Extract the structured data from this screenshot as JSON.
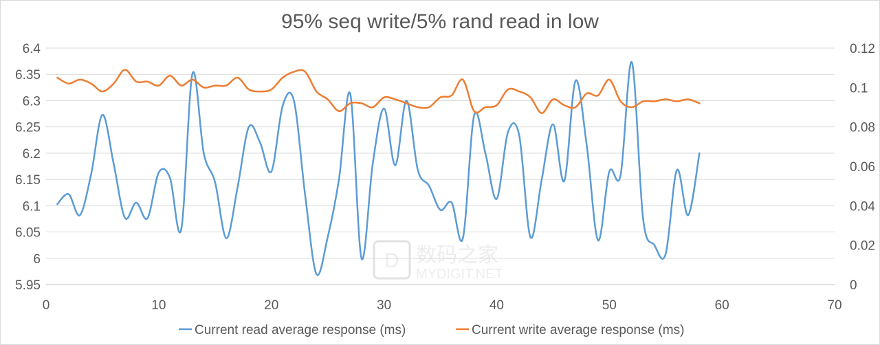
{
  "chart_data": {
    "type": "line",
    "title": "95% seq write/5% rand read in low",
    "xlabel": "",
    "ylabel": "",
    "xlim": [
      0,
      70
    ],
    "x_ticks": [
      "0",
      "10",
      "20",
      "30",
      "40",
      "50",
      "60",
      "70"
    ],
    "ylim_left": [
      5.95,
      6.4
    ],
    "y_ticks_left": [
      "5.95",
      "6",
      "6.05",
      "6.1",
      "6.15",
      "6.2",
      "6.25",
      "6.3",
      "6.35",
      "6.4"
    ],
    "ylim_right": [
      0,
      0.12
    ],
    "y_ticks_right": [
      "0",
      "0.02",
      "0.04",
      "0.06",
      "0.08",
      "0.1",
      "0.12"
    ],
    "grid": "horizontal",
    "legend_position": "bottom",
    "series": [
      {
        "name": "Current read average response (ms)",
        "axis": "left",
        "color": "#5b9bd5",
        "x": [
          1,
          2,
          3,
          4,
          5,
          6,
          7,
          8,
          9,
          10,
          11,
          12,
          13,
          14,
          15,
          16,
          17,
          18,
          19,
          20,
          21,
          22,
          23,
          24,
          25,
          26,
          27,
          28,
          29,
          30,
          31,
          32,
          33,
          34,
          35,
          36,
          37,
          38,
          39,
          40,
          41,
          42,
          43,
          44,
          45,
          46,
          47,
          48,
          49,
          50,
          51,
          52,
          53,
          54,
          55,
          56,
          57,
          58
        ],
        "values": [
          6.103,
          6.122,
          6.082,
          6.16,
          6.273,
          6.18,
          6.077,
          6.106,
          6.076,
          6.163,
          6.153,
          6.055,
          6.352,
          6.2,
          6.145,
          6.038,
          6.135,
          6.25,
          6.22,
          6.165,
          6.29,
          6.3,
          6.12,
          5.97,
          6.04,
          6.15,
          6.313,
          6.0,
          6.18,
          6.285,
          6.177,
          6.3,
          6.168,
          6.138,
          6.092,
          6.106,
          6.038,
          6.272,
          6.2,
          6.113,
          6.24,
          6.234,
          6.04,
          6.15,
          6.255,
          6.147,
          6.338,
          6.214,
          6.034,
          6.165,
          6.158,
          6.373,
          6.075,
          6.025,
          6.008,
          6.168,
          6.082,
          6.2
        ]
      },
      {
        "name": "Current write average response (ms)",
        "axis": "right",
        "color": "#ed7d31",
        "x": [
          1,
          2,
          3,
          4,
          5,
          6,
          7,
          8,
          9,
          10,
          11,
          12,
          13,
          14,
          15,
          16,
          17,
          18,
          19,
          20,
          21,
          22,
          23,
          24,
          25,
          26,
          27,
          28,
          29,
          30,
          31,
          32,
          33,
          34,
          35,
          36,
          37,
          38,
          39,
          40,
          41,
          42,
          43,
          44,
          45,
          46,
          47,
          48,
          49,
          50,
          51,
          52,
          53,
          54,
          55,
          56,
          57,
          58
        ],
        "values": [
          0.105,
          0.102,
          0.104,
          0.102,
          0.098,
          0.102,
          0.109,
          0.103,
          0.103,
          0.101,
          0.106,
          0.101,
          0.104,
          0.1,
          0.101,
          0.101,
          0.105,
          0.099,
          0.098,
          0.099,
          0.105,
          0.108,
          0.108,
          0.098,
          0.094,
          0.088,
          0.092,
          0.092,
          0.09,
          0.095,
          0.094,
          0.092,
          0.09,
          0.09,
          0.095,
          0.096,
          0.104,
          0.088,
          0.09,
          0.091,
          0.099,
          0.098,
          0.095,
          0.087,
          0.094,
          0.091,
          0.09,
          0.097,
          0.096,
          0.104,
          0.093,
          0.09,
          0.093,
          0.093,
          0.094,
          0.093,
          0.094,
          0.092
        ]
      }
    ]
  },
  "watermark": {
    "chinese": "数码之家",
    "english": "MYDIGIT.NET",
    "logo_letter": "D"
  }
}
